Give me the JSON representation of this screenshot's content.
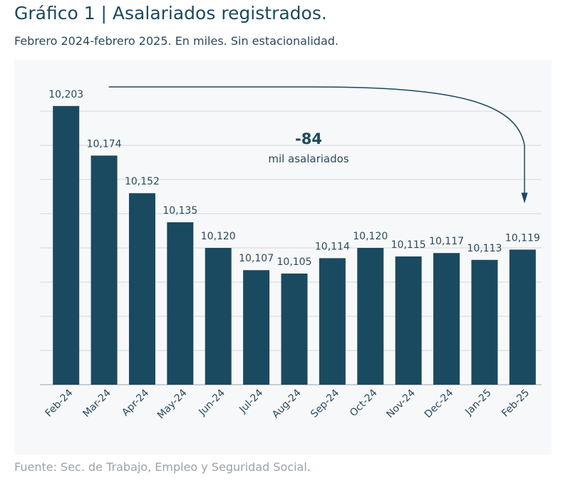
{
  "title": "Gráfico 1 | Asalariados registrados.",
  "subtitle": "Febrero 2024-febrero 2025. En miles. Sin estacionalidad.",
  "source": "Fuente: Sec. de Trabajo, Empleo y Seguridad Social.",
  "colors": {
    "bar": "#1a4a60",
    "grid": "#d3d8dc",
    "text": "#2b4a5a",
    "title": "#1c4a60",
    "arrow": "#1a4a60"
  },
  "chart_data": {
    "type": "bar",
    "categories": [
      "Feb-24",
      "Mar-24",
      "Apr-24",
      "May-24",
      "Jun-24",
      "Jul-24",
      "Aug-24",
      "Sep-24",
      "Oct-24",
      "Nov-24",
      "Dec-24",
      "Jan-25",
      "Feb-25"
    ],
    "values": [
      10203,
      10174,
      10152,
      10135,
      10120,
      10107,
      10105,
      10114,
      10120,
      10115,
      10117,
      10113,
      10119
    ],
    "value_labels": [
      "10,203",
      "10,174",
      "10,152",
      "10,135",
      "10,120",
      "10,107",
      "10,105",
      "10,114",
      "10,120",
      "10,115",
      "10,117",
      "10,113",
      "10,119"
    ],
    "ylim": [
      10040,
      10220
    ],
    "grid": true,
    "annotation": {
      "value": "-84",
      "text": "mil asalariados",
      "from": "Feb-24",
      "to": "Feb-25"
    }
  }
}
